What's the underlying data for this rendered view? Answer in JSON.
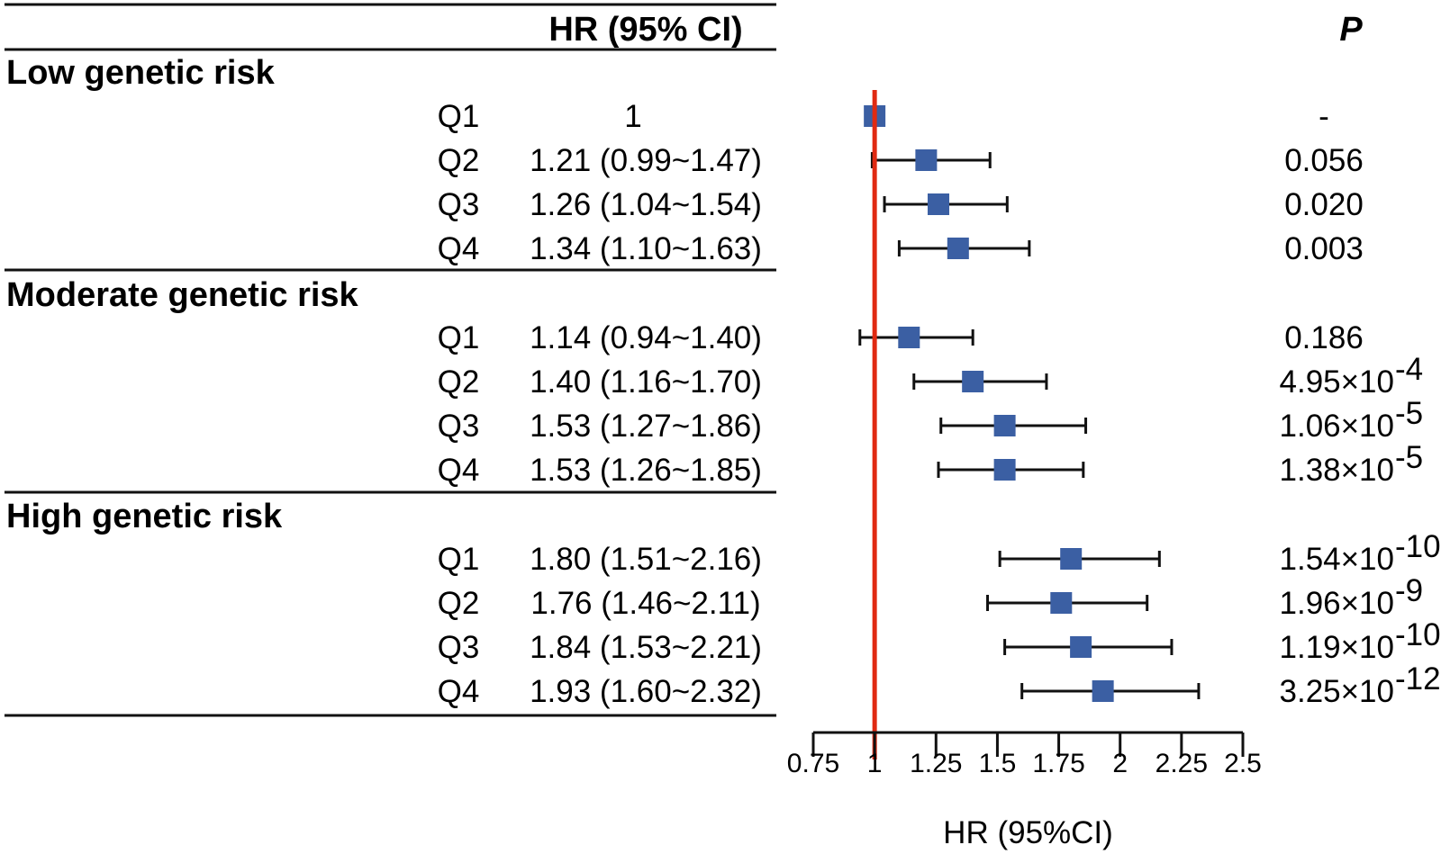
{
  "header": {
    "hr_title": "HR (95% CI)",
    "p_title": "P"
  },
  "groups": [
    {
      "label": "Low genetic risk",
      "rows": [
        {
          "quartile": "Q1",
          "hr_text": "1",
          "p": {
            "base": "-",
            "exp": ""
          },
          "hr": 1.0,
          "lo": null,
          "hi": null
        },
        {
          "quartile": "Q2",
          "hr_text": "1.21 (0.99~1.47)",
          "p": {
            "base": "0.056",
            "exp": ""
          },
          "hr": 1.21,
          "lo": 0.99,
          "hi": 1.47
        },
        {
          "quartile": "Q3",
          "hr_text": "1.26 (1.04~1.54)",
          "p": {
            "base": "0.020",
            "exp": ""
          },
          "hr": 1.26,
          "lo": 1.04,
          "hi": 1.54
        },
        {
          "quartile": "Q4",
          "hr_text": "1.34 (1.10~1.63)",
          "p": {
            "base": "0.003",
            "exp": ""
          },
          "hr": 1.34,
          "lo": 1.1,
          "hi": 1.63
        }
      ]
    },
    {
      "label": "Moderate genetic risk",
      "rows": [
        {
          "quartile": "Q1",
          "hr_text": "1.14 (0.94~1.40)",
          "p": {
            "base": "0.186",
            "exp": ""
          },
          "hr": 1.14,
          "lo": 0.94,
          "hi": 1.4
        },
        {
          "quartile": "Q2",
          "hr_text": "1.40 (1.16~1.70)",
          "p": {
            "base": "4.95×10",
            "exp": "-4"
          },
          "hr": 1.4,
          "lo": 1.16,
          "hi": 1.7
        },
        {
          "quartile": "Q3",
          "hr_text": "1.53 (1.27~1.86)",
          "p": {
            "base": "1.06×10",
            "exp": "-5"
          },
          "hr": 1.53,
          "lo": 1.27,
          "hi": 1.86
        },
        {
          "quartile": "Q4",
          "hr_text": "1.53 (1.26~1.85)",
          "p": {
            "base": "1.38×10",
            "exp": "-5"
          },
          "hr": 1.53,
          "lo": 1.26,
          "hi": 1.85
        }
      ]
    },
    {
      "label": "High genetic risk",
      "rows": [
        {
          "quartile": "Q1",
          "hr_text": "1.80 (1.51~2.16)",
          "p": {
            "base": "1.54×10",
            "exp": "-10"
          },
          "hr": 1.8,
          "lo": 1.51,
          "hi": 2.16
        },
        {
          "quartile": "Q2",
          "hr_text": "1.76 (1.46~2.11)",
          "p": {
            "base": "1.96×10",
            "exp": "-9"
          },
          "hr": 1.76,
          "lo": 1.46,
          "hi": 2.11
        },
        {
          "quartile": "Q3",
          "hr_text": "1.84 (1.53~2.21)",
          "p": {
            "base": "1.19×10",
            "exp": "-10"
          },
          "hr": 1.84,
          "lo": 1.53,
          "hi": 2.21
        },
        {
          "quartile": "Q4",
          "hr_text": "1.93 (1.60~2.32)",
          "p": {
            "base": "3.25×10",
            "exp": "-12"
          },
          "hr": 1.93,
          "lo": 1.6,
          "hi": 2.32
        }
      ]
    }
  ],
  "chart_data": {
    "type": "forest",
    "xlabel": "HR (95%CI)",
    "xlim": [
      0.75,
      2.5
    ],
    "xticks": [
      0.75,
      1,
      1.25,
      1.5,
      1.75,
      2,
      2.25,
      2.5
    ],
    "xtick_labels": [
      "0.75",
      "1",
      "1.25",
      "1.5",
      "1.75",
      "2",
      "2.25",
      "2.5"
    ],
    "reference_line": 1,
    "colors": {
      "marker": "#3b5fa3",
      "reference": "#e02a12",
      "whisker": "#111111"
    }
  }
}
